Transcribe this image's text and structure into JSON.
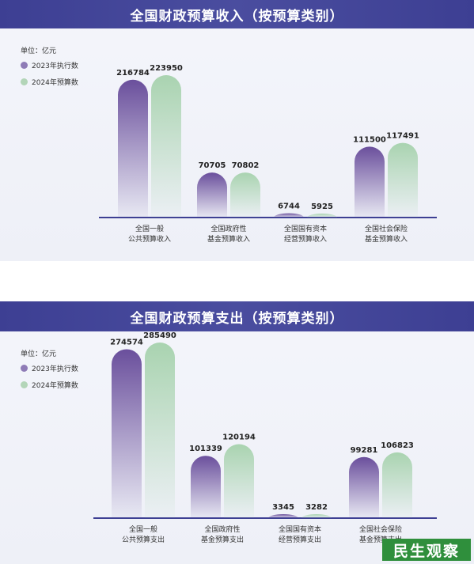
{
  "chart_data": [
    {
      "type": "bar",
      "title": "全国财政预算收入（按预算类别）",
      "unit_label": "单位：亿元",
      "categories": [
        [
          "全国一般",
          "公共预算收入"
        ],
        [
          "全国政府性",
          "基金预算收入"
        ],
        [
          "全国国有资本",
          "经营预算收入"
        ],
        [
          "全国社会保险",
          "基金预算收入"
        ]
      ],
      "series": [
        {
          "name": "2023年执行数",
          "values": [
            216784,
            70705,
            6744,
            111500
          ],
          "color": "#6a4f9c"
        },
        {
          "name": "2024年预算数",
          "values": [
            223950,
            70802,
            5925,
            117491
          ],
          "color": "#a9d3b0"
        }
      ],
      "ylim": [
        0,
        223950
      ],
      "legend": "top-left"
    },
    {
      "type": "bar",
      "title": "全国财政预算支出（按预算类别）",
      "unit_label": "单位：亿元",
      "categories": [
        [
          "全国一般",
          "公共预算支出"
        ],
        [
          "全国政府性",
          "基金预算支出"
        ],
        [
          "全国国有资本",
          "经营预算支出"
        ],
        [
          "全国社会保险",
          "基金预算支出"
        ]
      ],
      "series": [
        {
          "name": "2023年执行数",
          "values": [
            274574,
            101339,
            3345,
            99281
          ],
          "color": "#6a4f9c"
        },
        {
          "name": "2024年预算数",
          "values": [
            285490,
            120194,
            3282,
            106823
          ],
          "color": "#a9d3b0"
        }
      ],
      "ylim": [
        0,
        285490
      ],
      "legend": "top-left"
    }
  ],
  "watermark": "民生观察"
}
